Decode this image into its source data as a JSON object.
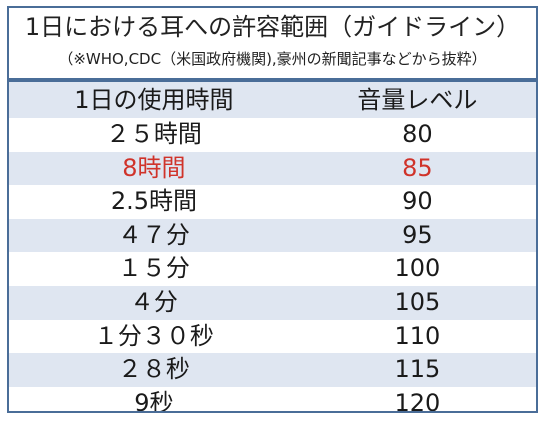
{
  "table": {
    "title": "1日における耳への許容範囲（ガイドライン）",
    "subtitle": "（※WHO,CDC（米国政府機関),豪州の新聞記事などから抜粋）",
    "headers": {
      "duration": "1日の使用時間",
      "level": "音量レベル"
    },
    "rows": [
      {
        "duration": "２５時間",
        "level": "80"
      },
      {
        "duration": "8時間",
        "level": "85"
      },
      {
        "duration": "2.5時間",
        "level": "90"
      },
      {
        "duration": "４７分",
        "level": "95"
      },
      {
        "duration": "１５分",
        "level": "100"
      },
      {
        "duration": "４分",
        "level": "105"
      },
      {
        "duration": "１分３０秒",
        "level": "110"
      },
      {
        "duration": "２８秒",
        "level": "115"
      },
      {
        "duration": "9秒",
        "level": "120"
      }
    ],
    "colors": {
      "border": "#4a6d98",
      "stripe": "#dfe6f1",
      "highlight_text": "#d0332a"
    }
  }
}
